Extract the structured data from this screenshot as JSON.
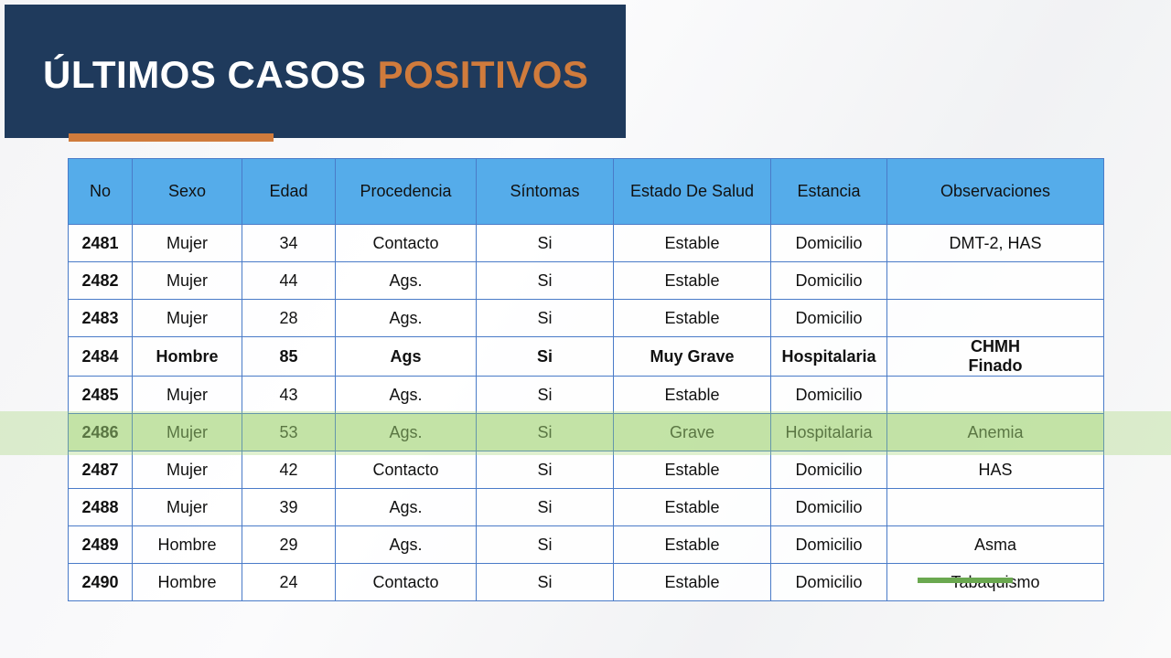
{
  "header": {
    "title_main": "ÚLTIMOS CASOS",
    "title_accent": "POSITIVOS"
  },
  "table": {
    "headers": [
      "No",
      "Sexo",
      "Edad",
      "Procedencia",
      "Síntomas",
      "Estado De Salud",
      "Estancia",
      "Observaciones"
    ],
    "rows": [
      [
        2481,
        "Mujer",
        34,
        "Contacto",
        "Si",
        "Estable",
        "Domicilio",
        "DMT-2, HAS"
      ],
      [
        2482,
        "Mujer",
        44,
        "Ags.",
        "Si",
        "Estable",
        "Domicilio",
        null
      ],
      [
        2483,
        "Mujer",
        28,
        "Ags.",
        "Si",
        "Estable",
        "Domicilio",
        null
      ],
      [
        2484,
        "Hombre",
        85,
        "Ags",
        "Si",
        "Muy Grave",
        "Hospitalaria",
        [
          "CHMH",
          "Finado"
        ]
      ],
      [
        2485,
        "Mujer",
        43,
        "Ags.",
        "Si",
        "Estable",
        "Domicilio",
        null
      ],
      [
        2486,
        "Mujer",
        53,
        "Ags.",
        "Si",
        "Grave",
        "Hospitalaria",
        "Anemia"
      ],
      [
        2487,
        "Mujer",
        42,
        "Contacto",
        "Si",
        "Estable",
        "Domicilio",
        "HAS"
      ],
      [
        2488,
        "Mujer",
        39,
        "Ags.",
        "Si",
        "Estable",
        "Domicilio",
        null
      ],
      [
        2489,
        "Hombre",
        29,
        "Ags.",
        "Si",
        "Estable",
        "Domicilio",
        "Asma"
      ],
      [
        2490,
        "Hombre",
        24,
        "Contacto",
        "Si",
        "Estable",
        "Domicilio",
        "Tabaquismo"
      ]
    ]
  }
}
